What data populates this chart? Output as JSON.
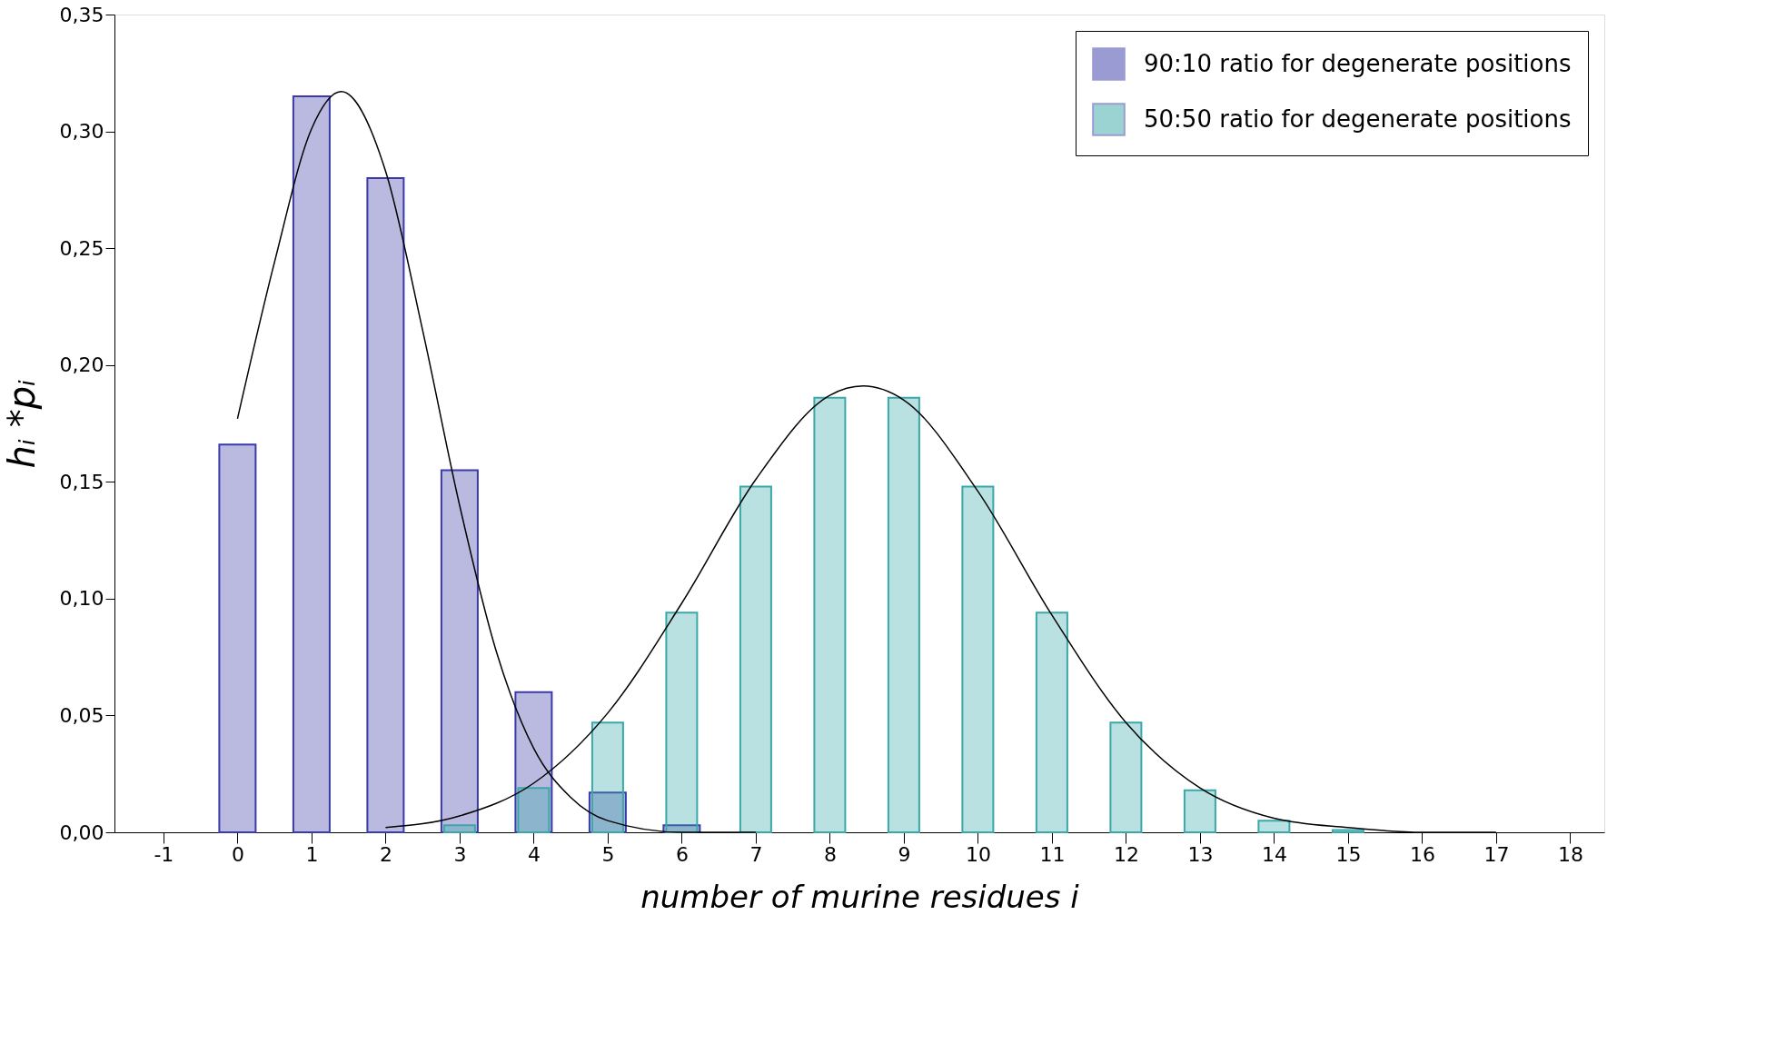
{
  "chart_data": {
    "type": "bar",
    "xlabel": "number of murine residues i",
    "ylabel": "hᵢ *pᵢ",
    "xlim": [
      -1.6,
      18.4
    ],
    "xticks": [
      -1,
      0,
      1,
      2,
      3,
      4,
      5,
      6,
      7,
      8,
      9,
      10,
      11,
      12,
      13,
      14,
      15,
      16,
      17,
      18
    ],
    "ylim": [
      0,
      0.35
    ],
    "yticks": [
      {
        "value": 0,
        "label": "0,00"
      },
      {
        "value": 0.05,
        "label": "0,05"
      },
      {
        "value": 0.1,
        "label": "0,10"
      },
      {
        "value": 0.15,
        "label": "0,15"
      },
      {
        "value": 0.2,
        "label": "0,20"
      },
      {
        "value": 0.25,
        "label": "0,25"
      },
      {
        "value": 0.3,
        "label": "0,30"
      },
      {
        "value": 0.35,
        "label": "0,35"
      }
    ],
    "grid": false,
    "legend": "top right",
    "series": [
      {
        "name": "90:10 ratio for degenerate positions",
        "color": "#3a3aa8",
        "x": [
          0,
          1,
          2,
          3,
          4,
          5,
          6
        ],
        "values": [
          0.166,
          0.315,
          0.28,
          0.155,
          0.06,
          0.017,
          0.003
        ]
      },
      {
        "name": "50:50 ratio for degenerate positions",
        "color": "#3aa8a8",
        "x": [
          3,
          4,
          5,
          6,
          7,
          8,
          9,
          10,
          11,
          12,
          13,
          14,
          15
        ],
        "values": [
          0.003,
          0.019,
          0.047,
          0.094,
          0.148,
          0.186,
          0.186,
          0.148,
          0.094,
          0.047,
          0.018,
          0.005,
          0.001
        ]
      },
      {
        "color": "#000000",
        "type": "line",
        "x": [
          0,
          0.5,
          1,
          1.4,
          2,
          2.5,
          3,
          3.5,
          4,
          4.5,
          5,
          6,
          7
        ],
        "values": [
          0.177,
          0.244,
          0.301,
          0.317,
          0.283,
          0.215,
          0.14,
          0.077,
          0.036,
          0.015,
          0.005,
          0.0,
          0.0
        ]
      },
      {
        "color": "#000000",
        "type": "line",
        "x": [
          2,
          3,
          4,
          5,
          6,
          7,
          8,
          8.45,
          9,
          10,
          11,
          12,
          13,
          14,
          15,
          16,
          17
        ],
        "values": [
          0.002,
          0.007,
          0.021,
          0.051,
          0.098,
          0.151,
          0.187,
          0.191,
          0.185,
          0.146,
          0.093,
          0.047,
          0.019,
          0.006,
          0.002,
          0.0,
          0.0
        ]
      }
    ]
  }
}
